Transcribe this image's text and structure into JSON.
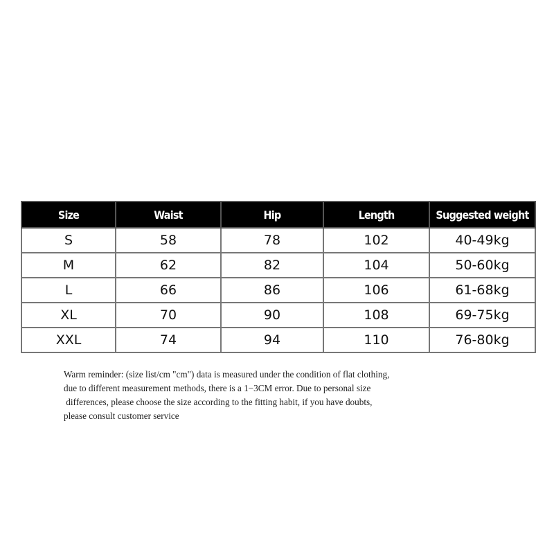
{
  "table": {
    "headers": [
      "Size",
      "Waist",
      "Hip",
      "Length",
      "Suggested weight"
    ],
    "rows": [
      [
        "S",
        "58",
        "78",
        "102",
        "40-49kg"
      ],
      [
        "M",
        "62",
        "82",
        "104",
        "50-60kg"
      ],
      [
        "L",
        "66",
        "86",
        "106",
        "61-68kg"
      ],
      [
        "XL",
        "70",
        "90",
        "108",
        "69-75kg"
      ],
      [
        "XXL",
        "74",
        "94",
        "110",
        "76-80kg"
      ]
    ]
  },
  "note": {
    "lines": [
      "Warm reminder: (size list/cm \"cm\") data is measured under the condition of flat clothing,",
      "due to different measurement methods, there is a 1−3CM error. Due to personal size",
      " differences, please choose the size according to the fitting habit, if you have doubts,",
      "please consult customer service"
    ]
  }
}
